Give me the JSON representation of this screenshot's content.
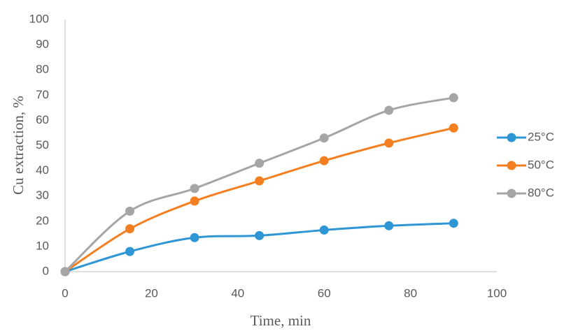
{
  "chart_data": {
    "type": "line",
    "x_label": "Time, min",
    "y_label": "Cu extraction, %",
    "x": [
      0,
      15,
      30,
      45,
      60,
      75,
      90
    ],
    "series": [
      {
        "name": "25°C",
        "color": "#2e96d4",
        "values": [
          0,
          8,
          13.5,
          14.3,
          16.5,
          18.2,
          19.2
        ]
      },
      {
        "name": "50°C",
        "color": "#f47f20",
        "values": [
          0,
          17,
          28,
          36,
          44,
          51,
          57
        ]
      },
      {
        "name": "80°C",
        "color": "#a5a5a5",
        "values": [
          0,
          24,
          33,
          43,
          53,
          64,
          69
        ]
      }
    ],
    "xlim": [
      0,
      100
    ],
    "xticks": [
      0,
      20,
      40,
      60,
      80,
      100
    ],
    "ylim": [
      0,
      100
    ],
    "yticks": [
      0,
      10,
      20,
      30,
      40,
      50,
      60,
      70,
      80,
      90,
      100
    ],
    "smooth": true,
    "legend": "right"
  }
}
